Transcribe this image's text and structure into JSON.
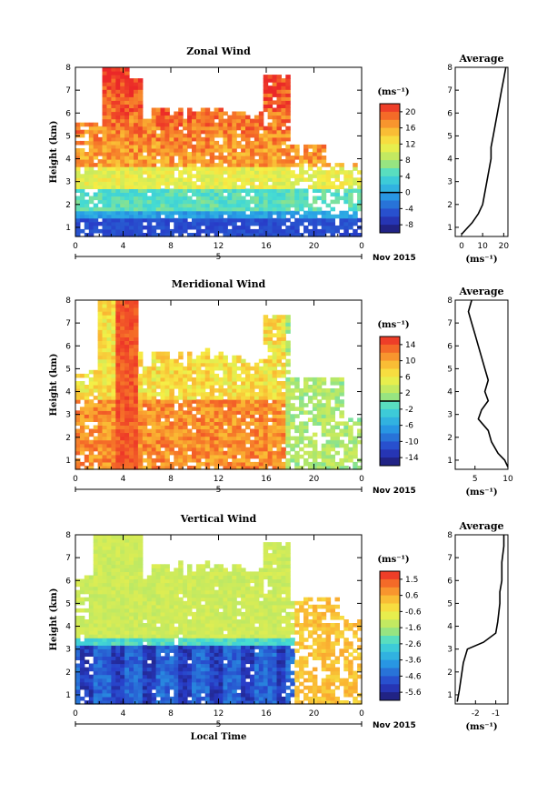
{
  "chart_data": [
    {
      "type": "heatmap",
      "title": "Zonal Wind",
      "xlabel": "",
      "ylabel": "Height (km)",
      "xlim": [
        0,
        24
      ],
      "ylim": [
        0.6,
        8
      ],
      "x_ticks": [
        "0",
        "4",
        "8",
        "12",
        "16",
        "20",
        "0"
      ],
      "y_ticks": [
        "1",
        "2",
        "3",
        "4",
        "5",
        "6",
        "7",
        "8"
      ],
      "date_label": "5",
      "date_right": "Nov 2015",
      "colorbar": {
        "unit": "(ms⁻¹)",
        "ticks": [
          "20",
          "16",
          "12",
          "8",
          "4",
          "0",
          "-4",
          "-8"
        ],
        "range": [
          -10,
          22
        ],
        "marker": 0
      },
      "profile": {
        "title": "Average",
        "xlabel": "(ms⁻¹)",
        "x_ticks": [
          "0",
          "10",
          "20"
        ],
        "xlim": [
          -3,
          22
        ],
        "points": [
          [
            0,
            0.7
          ],
          [
            2,
            0.9
          ],
          [
            5,
            1.2
          ],
          [
            8,
            1.6
          ],
          [
            10,
            2.0
          ],
          [
            11,
            2.5
          ],
          [
            12,
            3.0
          ],
          [
            13,
            3.5
          ],
          [
            14,
            4.0
          ],
          [
            14,
            4.5
          ],
          [
            15,
            5.0
          ],
          [
            16,
            5.5
          ],
          [
            17,
            6.0
          ],
          [
            18,
            6.5
          ],
          [
            19,
            7.0
          ],
          [
            20,
            7.5
          ],
          [
            21,
            8.0
          ]
        ]
      }
    },
    {
      "type": "heatmap",
      "title": "Meridional Wind",
      "xlabel": "",
      "ylabel": "Height (km)",
      "xlim": [
        0,
        24
      ],
      "ylim": [
        0.6,
        8
      ],
      "x_ticks": [
        "0",
        "4",
        "8",
        "12",
        "16",
        "20",
        "0"
      ],
      "y_ticks": [
        "1",
        "2",
        "3",
        "4",
        "5",
        "6",
        "7",
        "8"
      ],
      "date_label": "5",
      "date_right": "Nov 2015",
      "colorbar": {
        "unit": "(ms⁻¹)",
        "ticks": [
          "14",
          "10",
          "6",
          "2",
          "-2",
          "-6",
          "-10",
          "-14"
        ],
        "range": [
          -16,
          16
        ],
        "marker": 0
      },
      "profile": {
        "title": "Average",
        "xlabel": "(ms⁻¹)",
        "x_ticks": [
          "5",
          "10"
        ],
        "xlim": [
          2,
          10
        ],
        "points": [
          [
            10,
            0.7
          ],
          [
            9.5,
            1.0
          ],
          [
            8.5,
            1.3
          ],
          [
            7.5,
            1.8
          ],
          [
            7.0,
            2.3
          ],
          [
            5.5,
            2.8
          ],
          [
            6.0,
            3.2
          ],
          [
            7.0,
            3.6
          ],
          [
            6.5,
            4.0
          ],
          [
            7.0,
            4.5
          ],
          [
            6.5,
            5.0
          ],
          [
            6.0,
            5.5
          ],
          [
            5.5,
            6.0
          ],
          [
            5.0,
            6.5
          ],
          [
            4.5,
            7.0
          ],
          [
            4.0,
            7.5
          ],
          [
            4.5,
            8.0
          ]
        ]
      }
    },
    {
      "type": "heatmap",
      "title": "Vertical Wind",
      "xlabel": "Local Time",
      "ylabel": "Height (km)",
      "xlim": [
        0,
        24
      ],
      "ylim": [
        0.6,
        8
      ],
      "x_ticks": [
        "0",
        "4",
        "8",
        "12",
        "16",
        "20",
        "0"
      ],
      "y_ticks": [
        "1",
        "2",
        "3",
        "4",
        "5",
        "6",
        "7",
        "8"
      ],
      "date_label": "5",
      "date_right": "Nov 2015",
      "colorbar": {
        "unit": "(ms⁻¹)",
        "ticks": [
          "1.5",
          "0.6",
          "-0.6",
          "-1.6",
          "-2.6",
          "-3.6",
          "-4.6",
          "-5.6"
        ],
        "range": [
          -6,
          2
        ],
        "marker": null
      },
      "profile": {
        "title": "Average",
        "xlabel": "(ms⁻¹)",
        "x_ticks": [
          "-2",
          "-1"
        ],
        "xlim": [
          -3,
          -0.4
        ],
        "points": [
          [
            -2.9,
            0.7
          ],
          [
            -2.8,
            1.2
          ],
          [
            -2.7,
            1.8
          ],
          [
            -2.6,
            2.4
          ],
          [
            -2.4,
            3.0
          ],
          [
            -1.6,
            3.3
          ],
          [
            -1.0,
            3.7
          ],
          [
            -0.9,
            4.2
          ],
          [
            -0.8,
            5.0
          ],
          [
            -0.8,
            5.5
          ],
          [
            -0.7,
            6.0
          ],
          [
            -0.7,
            6.8
          ],
          [
            -0.6,
            7.5
          ],
          [
            -0.6,
            8.0
          ]
        ]
      }
    }
  ]
}
